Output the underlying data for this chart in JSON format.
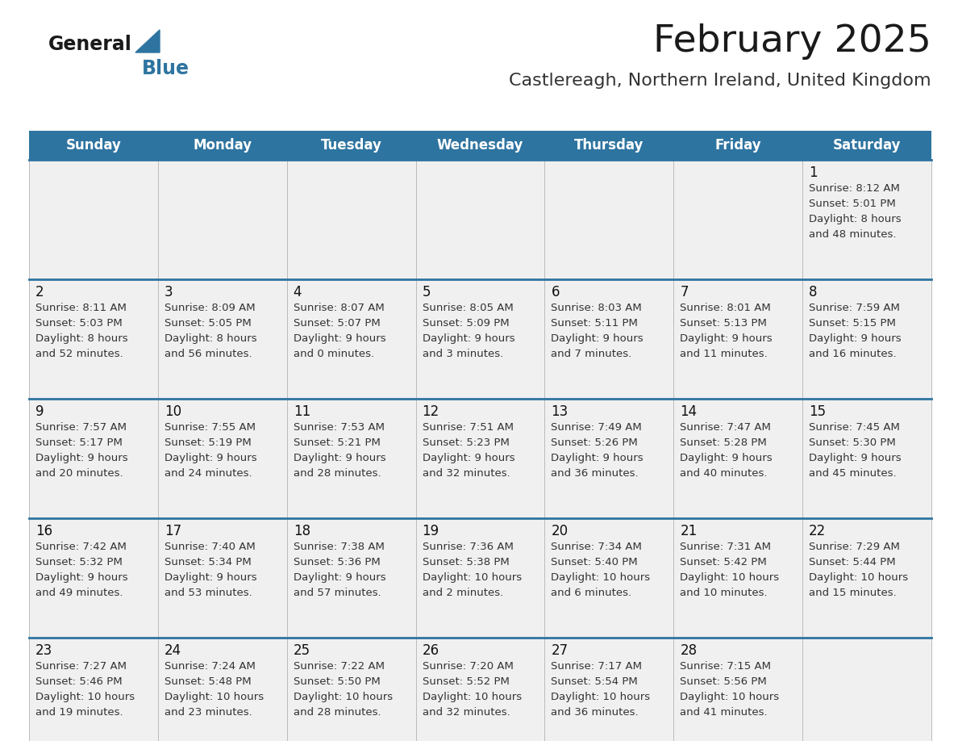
{
  "title": "February 2025",
  "subtitle": "Castlereagh, Northern Ireland, United Kingdom",
  "days_of_week": [
    "Sunday",
    "Monday",
    "Tuesday",
    "Wednesday",
    "Thursday",
    "Friday",
    "Saturday"
  ],
  "header_bg": "#2E74A0",
  "header_text": "#FFFFFF",
  "row_bg": "#F0F0F0",
  "divider_color": "#2E74A0",
  "day_number_color": "#111111",
  "info_text_color": "#333333",
  "title_color": "#1a1a1a",
  "subtitle_color": "#333333",
  "calendar_data": [
    {
      "day": 1,
      "sunrise": "8:12 AM",
      "sunset": "5:01 PM",
      "daylight_hours": 8,
      "daylight_minutes": 48
    },
    {
      "day": 2,
      "sunrise": "8:11 AM",
      "sunset": "5:03 PM",
      "daylight_hours": 8,
      "daylight_minutes": 52
    },
    {
      "day": 3,
      "sunrise": "8:09 AM",
      "sunset": "5:05 PM",
      "daylight_hours": 8,
      "daylight_minutes": 56
    },
    {
      "day": 4,
      "sunrise": "8:07 AM",
      "sunset": "5:07 PM",
      "daylight_hours": 9,
      "daylight_minutes": 0
    },
    {
      "day": 5,
      "sunrise": "8:05 AM",
      "sunset": "5:09 PM",
      "daylight_hours": 9,
      "daylight_minutes": 3
    },
    {
      "day": 6,
      "sunrise": "8:03 AM",
      "sunset": "5:11 PM",
      "daylight_hours": 9,
      "daylight_minutes": 7
    },
    {
      "day": 7,
      "sunrise": "8:01 AM",
      "sunset": "5:13 PM",
      "daylight_hours": 9,
      "daylight_minutes": 11
    },
    {
      "day": 8,
      "sunrise": "7:59 AM",
      "sunset": "5:15 PM",
      "daylight_hours": 9,
      "daylight_minutes": 16
    },
    {
      "day": 9,
      "sunrise": "7:57 AM",
      "sunset": "5:17 PM",
      "daylight_hours": 9,
      "daylight_minutes": 20
    },
    {
      "day": 10,
      "sunrise": "7:55 AM",
      "sunset": "5:19 PM",
      "daylight_hours": 9,
      "daylight_minutes": 24
    },
    {
      "day": 11,
      "sunrise": "7:53 AM",
      "sunset": "5:21 PM",
      "daylight_hours": 9,
      "daylight_minutes": 28
    },
    {
      "day": 12,
      "sunrise": "7:51 AM",
      "sunset": "5:23 PM",
      "daylight_hours": 9,
      "daylight_minutes": 32
    },
    {
      "day": 13,
      "sunrise": "7:49 AM",
      "sunset": "5:26 PM",
      "daylight_hours": 9,
      "daylight_minutes": 36
    },
    {
      "day": 14,
      "sunrise": "7:47 AM",
      "sunset": "5:28 PM",
      "daylight_hours": 9,
      "daylight_minutes": 40
    },
    {
      "day": 15,
      "sunrise": "7:45 AM",
      "sunset": "5:30 PM",
      "daylight_hours": 9,
      "daylight_minutes": 45
    },
    {
      "day": 16,
      "sunrise": "7:42 AM",
      "sunset": "5:32 PM",
      "daylight_hours": 9,
      "daylight_minutes": 49
    },
    {
      "day": 17,
      "sunrise": "7:40 AM",
      "sunset": "5:34 PM",
      "daylight_hours": 9,
      "daylight_minutes": 53
    },
    {
      "day": 18,
      "sunrise": "7:38 AM",
      "sunset": "5:36 PM",
      "daylight_hours": 9,
      "daylight_minutes": 57
    },
    {
      "day": 19,
      "sunrise": "7:36 AM",
      "sunset": "5:38 PM",
      "daylight_hours": 10,
      "daylight_minutes": 2
    },
    {
      "day": 20,
      "sunrise": "7:34 AM",
      "sunset": "5:40 PM",
      "daylight_hours": 10,
      "daylight_minutes": 6
    },
    {
      "day": 21,
      "sunrise": "7:31 AM",
      "sunset": "5:42 PM",
      "daylight_hours": 10,
      "daylight_minutes": 10
    },
    {
      "day": 22,
      "sunrise": "7:29 AM",
      "sunset": "5:44 PM",
      "daylight_hours": 10,
      "daylight_minutes": 15
    },
    {
      "day": 23,
      "sunrise": "7:27 AM",
      "sunset": "5:46 PM",
      "daylight_hours": 10,
      "daylight_minutes": 19
    },
    {
      "day": 24,
      "sunrise": "7:24 AM",
      "sunset": "5:48 PM",
      "daylight_hours": 10,
      "daylight_minutes": 23
    },
    {
      "day": 25,
      "sunrise": "7:22 AM",
      "sunset": "5:50 PM",
      "daylight_hours": 10,
      "daylight_minutes": 28
    },
    {
      "day": 26,
      "sunrise": "7:20 AM",
      "sunset": "5:52 PM",
      "daylight_hours": 10,
      "daylight_minutes": 32
    },
    {
      "day": 27,
      "sunrise": "7:17 AM",
      "sunset": "5:54 PM",
      "daylight_hours": 10,
      "daylight_minutes": 36
    },
    {
      "day": 28,
      "sunrise": "7:15 AM",
      "sunset": "5:56 PM",
      "daylight_hours": 10,
      "daylight_minutes": 41
    }
  ]
}
